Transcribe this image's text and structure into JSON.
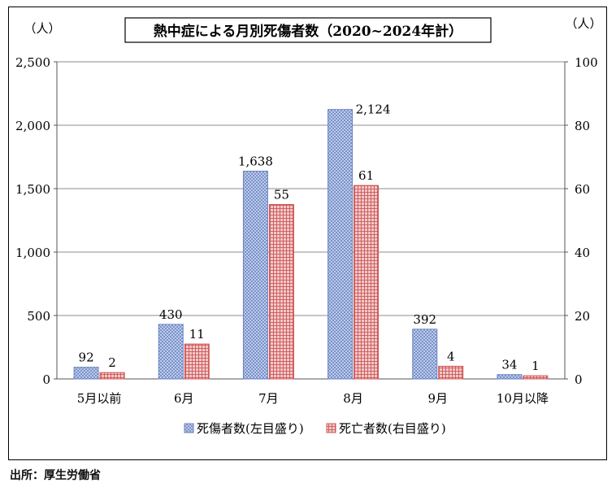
{
  "source_note": "出所：厚生労働省",
  "colors": {
    "injured": "#6a84c4",
    "injured_fill": "#c9d5ee",
    "deaths": "#d05656",
    "deaths_fill": "#eebdbd",
    "axis": "#555555",
    "grid": "#8c8c8c"
  },
  "chart_data": {
    "type": "bar",
    "title": "熱中症による月別死傷者数（2020~2024年計）",
    "ylabel_left": "（人）",
    "ylabel_right": "（人）",
    "categories": [
      "5月以前",
      "6月",
      "7月",
      "8月",
      "9月",
      "10月以降"
    ],
    "series": [
      {
        "name": "死傷者数(左目盛り)",
        "axis": "left",
        "values": [
          92,
          430,
          1638,
          2124,
          392,
          34
        ],
        "labels": [
          "92",
          "430",
          "1,638",
          "2,124",
          "392",
          "34"
        ]
      },
      {
        "name": "死亡者数(右目盛り)",
        "axis": "right",
        "values": [
          2,
          11,
          55,
          61,
          4,
          1
        ],
        "labels": [
          "2",
          "11",
          "55",
          "61",
          "4",
          "1"
        ]
      }
    ],
    "ylim_left": [
      0,
      2500
    ],
    "ylim_right": [
      0,
      100
    ],
    "yticks_left": [
      "0",
      "500",
      "1,000",
      "1,500",
      "2,000",
      "2,500"
    ],
    "yticks_right": [
      "0",
      "20",
      "40",
      "60",
      "80",
      "100"
    ],
    "grid": true,
    "legend_position": "bottom"
  }
}
